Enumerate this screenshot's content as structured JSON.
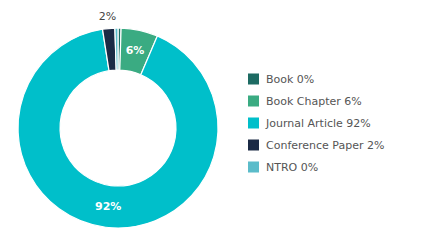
{
  "chart_data": {
    "type": "pie",
    "categories": [
      "Book 0%",
      "Book Chapter 6%",
      "Journal Article 92%",
      "Conference Paper 2%",
      "NTRO 0%"
    ],
    "values": [
      0.5,
      6,
      92,
      2,
      0.5
    ],
    "value_labels": [
      null,
      "6%",
      "92%",
      "2%",
      null
    ],
    "data_labels": true,
    "colors": [
      "#1d6b63",
      "#3aab82",
      "#00bfca",
      "#1b2a45",
      "#5bbcca"
    ],
    "legend": "right"
  }
}
